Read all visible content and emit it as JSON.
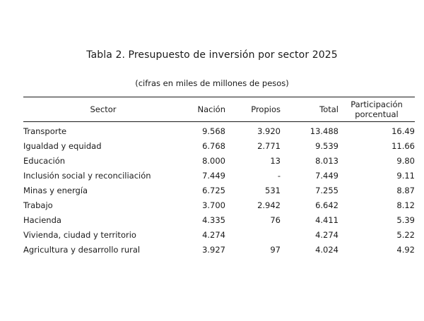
{
  "title": "Tabla 2. Presupuesto de inversión por sector 2025",
  "subtitle": "(cifras en miles de millones de pesos)",
  "columns": {
    "sector": "Sector",
    "nacion": "Nación",
    "propios": "Propios",
    "total": "Total",
    "participacion": "Participación porcentual"
  },
  "rows": [
    {
      "sector": "Transporte",
      "nacion": "9.568",
      "propios": "3.920",
      "total": "13.488",
      "participacion": "16.49"
    },
    {
      "sector": "Igualdad y equidad",
      "nacion": "6.768",
      "propios": "2.771",
      "total": "9.539",
      "participacion": "11.66"
    },
    {
      "sector": "Educación",
      "nacion": "8.000",
      "propios": "13",
      "total": "8.013",
      "participacion": "9.80"
    },
    {
      "sector": "Inclusión social y reconciliación",
      "nacion": "7.449",
      "propios": "-",
      "total": "7.449",
      "participacion": "9.11"
    },
    {
      "sector": "Minas y energía",
      "nacion": "6.725",
      "propios": "531",
      "total": "7.255",
      "participacion": "8.87"
    },
    {
      "sector": "Trabajo",
      "nacion": "3.700",
      "propios": "2.942",
      "total": "6.642",
      "participacion": "8.12"
    },
    {
      "sector": "Hacienda",
      "nacion": "4.335",
      "propios": "76",
      "total": "4.411",
      "participacion": "5.39"
    },
    {
      "sector": "Vivienda, ciudad y territorio",
      "nacion": "4.274",
      "propios": "",
      "total": "4.274",
      "participacion": "5.22"
    },
    {
      "sector": "Agricultura y desarrollo rural",
      "nacion": "3.927",
      "propios": "97",
      "total": "4.024",
      "participacion": "4.92"
    }
  ]
}
